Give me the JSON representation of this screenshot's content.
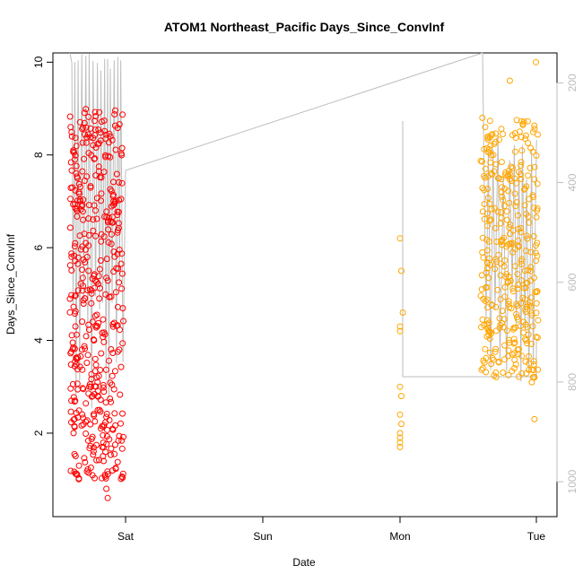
{
  "chart_data": {
    "type": "scatter",
    "title": "ATOM1 Northeast_Pacific Days_Since_ConvInf",
    "xlabel": "Date",
    "ylabel": "Days_Since_ConvInf",
    "x_ticks": [
      "Sat",
      "Sun",
      "Mon",
      "Tue"
    ],
    "x_range_days": [
      -0.45,
      0.15
    ],
    "ylim": [
      0.2,
      10.2
    ],
    "y_ticks": [
      2,
      4,
      6,
      8,
      10
    ],
    "right_axis": {
      "ticks": [
        200,
        400,
        600,
        800,
        1000
      ],
      "range": [
        1070,
        140
      ],
      "color": "#bdbdbd"
    },
    "grid": false,
    "colors": {
      "day1": "#ff0000",
      "day2": "#ffa500",
      "line": "#bebebe"
    },
    "series": [
      {
        "color": "#ff0000",
        "points": [
          [
            "-0.4 ",
            8.6
          ],
          [
            "-0.39",
            8.4
          ],
          [
            "-0.38",
            8.1
          ],
          [
            "-0.37",
            7.9
          ],
          [
            "-0.36",
            7.6
          ],
          [
            "-0.35",
            7.5
          ],
          [
            "-0.34",
            7.2
          ],
          [
            "-0.33",
            7.0
          ],
          [
            "-0.32",
            6.9
          ],
          [
            "-0.31",
            6.6
          ],
          [
            "-0.3",
            6.3
          ],
          [
            "-0.29",
            6.1
          ],
          [
            "-0.28",
            5.8
          ],
          [
            "-0.27",
            5.5
          ],
          [
            "-0.26",
            5.1
          ],
          [
            "-0.25",
            4.8
          ],
          [
            "-0.24",
            4.4
          ],
          [
            "-0.23",
            4.0
          ],
          [
            "-0.22",
            3.6
          ],
          [
            "-0.21",
            3.2
          ],
          [
            "-0.2",
            2.8
          ],
          [
            "-0.19",
            2.5
          ],
          [
            "-0.18",
            2.1
          ],
          [
            "-0.17",
            1.7
          ],
          [
            "-0.16",
            1.4
          ],
          [
            "-0.15",
            1.1
          ],
          [
            "-0.14",
            0.8
          ],
          [
            "-0.13",
            0.6
          ]
        ]
      },
      {
        "color": "#ffa500",
        "points": [
          [
            "2.0",
            6.2
          ],
          [
            "2.01",
            5.5
          ],
          [
            "2.02",
            4.6
          ],
          [
            "2.0",
            4.3
          ],
          [
            "2.0",
            4.2
          ],
          [
            "2.0",
            3.0
          ],
          [
            "2.01",
            2.8
          ],
          [
            "2.0",
            2.4
          ],
          [
            "2.01",
            2.2
          ],
          [
            "2.0",
            2.0
          ],
          [
            "2.0",
            1.9
          ],
          [
            "2.0",
            1.8
          ],
          [
            "2.0",
            1.7
          ],
          [
            "2.6",
            8.8
          ],
          [
            "2.62",
            8.6
          ],
          [
            "2.64",
            8.4
          ],
          [
            "2.66",
            8.2
          ],
          [
            "2.68",
            8.0
          ],
          [
            "2.7",
            7.8
          ],
          [
            "2.72",
            7.5
          ],
          [
            "2.74",
            7.2
          ],
          [
            "2.76",
            6.9
          ],
          [
            "2.78",
            6.6
          ],
          [
            "2.8",
            6.3
          ],
          [
            "2.82",
            5.9
          ],
          [
            "2.84",
            5.6
          ],
          [
            "2.86",
            5.2
          ],
          [
            "2.88",
            4.8
          ],
          [
            "2.9",
            4.4
          ],
          [
            "2.92",
            4.0
          ],
          [
            "2.94",
            3.5
          ],
          [
            "2.96",
            3.1
          ],
          [
            "2.98",
            2.3
          ],
          [
            "2.99",
            10.0
          ],
          [
            "2.8",
            9.6
          ]
        ]
      }
    ]
  }
}
